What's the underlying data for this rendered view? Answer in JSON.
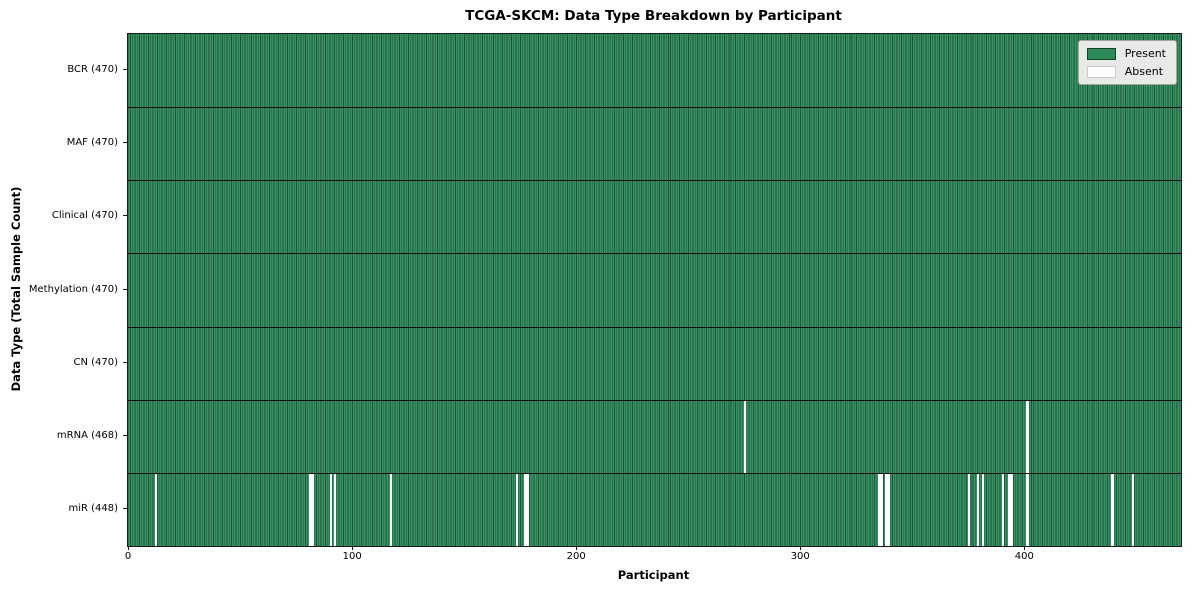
{
  "chart_data": {
    "type": "heatmap",
    "title": "TCGA-SKCM: Data Type Breakdown by Participant",
    "xlabel": "Participant",
    "ylabel": "Data Type (Total Sample Count)",
    "n_participants": 470,
    "x_ticks": [
      0,
      100,
      200,
      300,
      400
    ],
    "grid": false,
    "legend_position": "upper right",
    "legend": {
      "entries": [
        {
          "label": "Present",
          "color": "#2e8b57"
        },
        {
          "label": "Absent",
          "color": "#ffffff"
        }
      ]
    },
    "colors": {
      "present_fill": "#2e8b57",
      "present_edge": "#1d573a",
      "absent_fill": "#ffffff",
      "legend_background": "#e7eae6"
    },
    "rows": [
      {
        "label": "BCR (470)",
        "data_type": "BCR",
        "present_count": 470,
        "absent_count": 0,
        "absent_participants": []
      },
      {
        "label": "MAF (470)",
        "data_type": "MAF",
        "present_count": 470,
        "absent_count": 0,
        "absent_participants": []
      },
      {
        "label": "Clinical (470)",
        "data_type": "Clinical",
        "present_count": 470,
        "absent_count": 0,
        "absent_participants": []
      },
      {
        "label": "Methylation (470)",
        "data_type": "Methylation",
        "present_count": 470,
        "absent_count": 0,
        "absent_participants": []
      },
      {
        "label": "CN (470)",
        "data_type": "CN",
        "present_count": 470,
        "absent_count": 0,
        "absent_participants": []
      },
      {
        "label": "mRNA (468)",
        "data_type": "mRNA",
        "present_count": 468,
        "absent_count": 2,
        "absent_participants": [
          275,
          401
        ]
      },
      {
        "label": "miR (448)",
        "data_type": "miR",
        "present_count": 448,
        "absent_count": 22,
        "absent_participants": [
          12,
          81,
          82,
          90,
          92,
          117,
          173,
          177,
          178,
          335,
          336,
          338,
          339,
          375,
          379,
          381,
          390,
          393,
          394,
          401,
          439,
          448
        ]
      }
    ]
  }
}
